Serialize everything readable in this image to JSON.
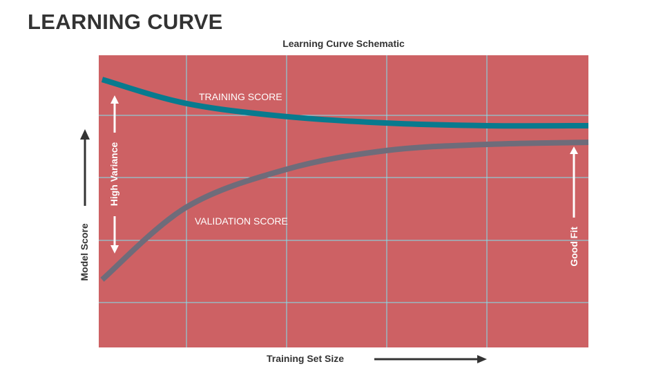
{
  "title": "LEARNING CURVE",
  "chart_data": {
    "type": "line",
    "title": "Learning Curve Schematic",
    "xlabel": "Training Set Size",
    "ylabel": "Model Score",
    "xlim": [
      0,
      100
    ],
    "ylim": [
      0,
      100
    ],
    "grid": true,
    "background": "#CD6164",
    "grid_color": "#7FE3F0",
    "series": [
      {
        "name": "TRAINING SCORE",
        "color": "#087A8E",
        "x": [
          0.7,
          17.9,
          38.4,
          58.8,
          79.3,
          100
        ],
        "y": [
          91.7,
          83.5,
          79,
          76.8,
          75.9,
          75.9
        ]
      },
      {
        "name": "VALIDATION SCORE",
        "color": "#6E6C7A",
        "x": [
          0.7,
          17.9,
          38.4,
          58.8,
          79.3,
          100
        ],
        "y": [
          23.2,
          48,
          61,
          67.4,
          69.5,
          70.2
        ]
      }
    ],
    "annotations": [
      {
        "text": "High Variance"
      },
      {
        "text": "Good Fit"
      }
    ]
  }
}
